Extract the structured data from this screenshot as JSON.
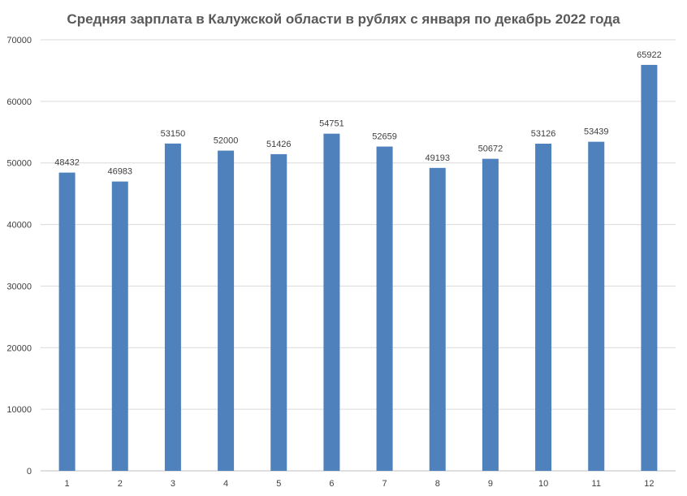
{
  "chart_data": {
    "type": "bar",
    "title": "Средняя зарплата в Калужской области в рублях с января  по декабрь 2022 года",
    "xlabel": "",
    "ylabel": "",
    "categories": [
      "1",
      "2",
      "3",
      "4",
      "5",
      "6",
      "7",
      "8",
      "9",
      "10",
      "11",
      "12"
    ],
    "values": [
      48432,
      46983,
      53150,
      52000,
      51426,
      54751,
      52659,
      49193,
      50672,
      53126,
      53439,
      65922
    ],
    "ylim": [
      0,
      70000
    ],
    "yticks": [
      0,
      10000,
      20000,
      30000,
      40000,
      50000,
      60000,
      70000
    ],
    "grid": true,
    "legend": "none",
    "bar_color": "#4f81bd",
    "grid_color": "#d9d9d9"
  }
}
